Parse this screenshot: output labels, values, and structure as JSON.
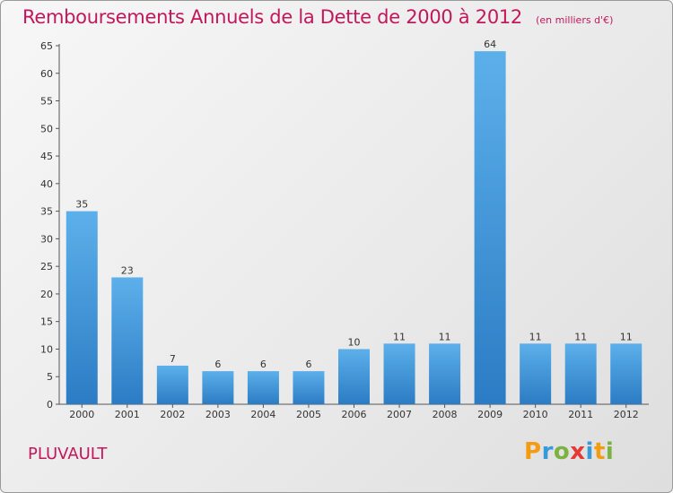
{
  "title": "Remboursements Annuels de la Dette de 2000 à 2012",
  "unit": "(en milliers d'€)",
  "place": "PLUVAULT",
  "logo": {
    "letters": [
      "P",
      "r",
      "o",
      "x",
      "i",
      "t",
      "i"
    ],
    "colors": [
      "#f39c12",
      "#3a9ad9",
      "#7bb241",
      "#e53935",
      "#3a9ad9",
      "#f39c12",
      "#7bb241"
    ]
  },
  "colors": {
    "bar": "#3a8fd6",
    "bar_light": "#5aaee8",
    "title": "#c2185b"
  },
  "chart_data": {
    "type": "bar",
    "title": "Remboursements Annuels de la Dette de 2000 à 2012",
    "xlabel": "",
    "ylabel": "",
    "categories": [
      "2000",
      "2001",
      "2002",
      "2003",
      "2004",
      "2005",
      "2006",
      "2007",
      "2008",
      "2009",
      "2010",
      "2011",
      "2012"
    ],
    "values": [
      35,
      23,
      7,
      6,
      6,
      6,
      10,
      11,
      11,
      64,
      11,
      11,
      11
    ],
    "ylim": [
      0,
      65
    ],
    "yticks": [
      0,
      5,
      10,
      15,
      20,
      25,
      30,
      35,
      40,
      45,
      50,
      55,
      60,
      65
    ],
    "grid": false,
    "data_labels": true
  }
}
